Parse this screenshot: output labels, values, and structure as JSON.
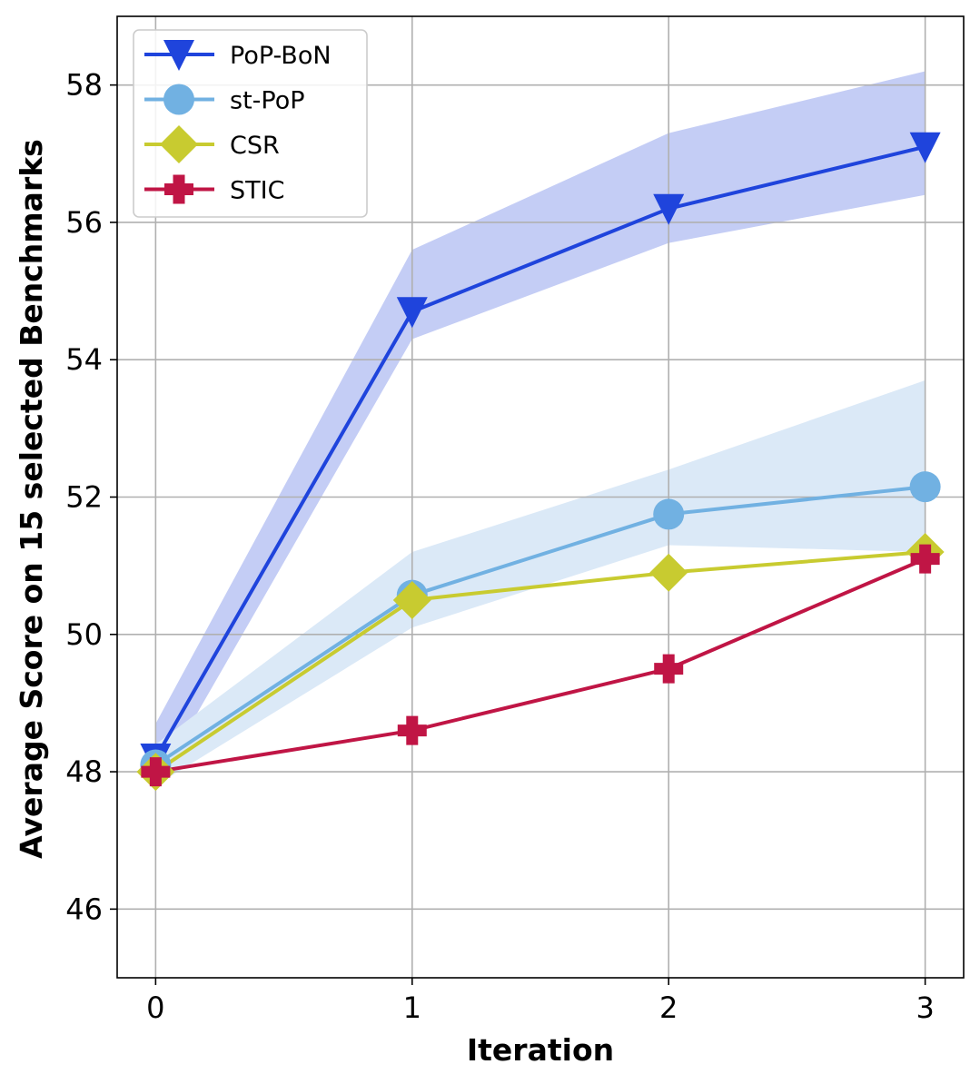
{
  "chart_data": {
    "type": "line",
    "title": "",
    "xlabel": "Iteration",
    "ylabel": "Average Score on 15 selected Benchmarks",
    "x": [
      0,
      1,
      2,
      3
    ],
    "x_ticks": [
      "0",
      "1",
      "2",
      "3"
    ],
    "y_ticks": [
      "46",
      "48",
      "50",
      "52",
      "54",
      "56",
      "58"
    ],
    "xlim": [
      -0.15,
      3.15
    ],
    "ylim": [
      45,
      59
    ],
    "grid": true,
    "legend_position": "top-left",
    "series": [
      {
        "name": "PoP-BoN",
        "color": "#1f44dc",
        "band_color": "#c4cdf5",
        "marker": "triangle-down",
        "values": [
          48.2,
          54.7,
          56.2,
          57.1
        ],
        "band_upper": [
          48.7,
          55.6,
          57.3,
          58.2
        ],
        "band_lower": [
          47.8,
          54.3,
          55.7,
          56.4
        ]
      },
      {
        "name": "st-PoP",
        "color": "#71b1e2",
        "band_color": "#dbe9f7",
        "marker": "circle",
        "values": [
          48.1,
          50.57,
          51.75,
          52.15
        ],
        "band_upper": [
          48.4,
          51.2,
          52.4,
          53.7
        ],
        "band_lower": [
          47.8,
          50.1,
          51.3,
          51.2
        ]
      },
      {
        "name": "CSR",
        "color": "#c8cb30",
        "marker": "diamond",
        "values": [
          48.0,
          50.5,
          50.9,
          51.2
        ]
      },
      {
        "name": "STIC",
        "color": "#c01545",
        "marker": "plus",
        "values": [
          48.0,
          48.6,
          49.5,
          51.1
        ]
      }
    ]
  }
}
